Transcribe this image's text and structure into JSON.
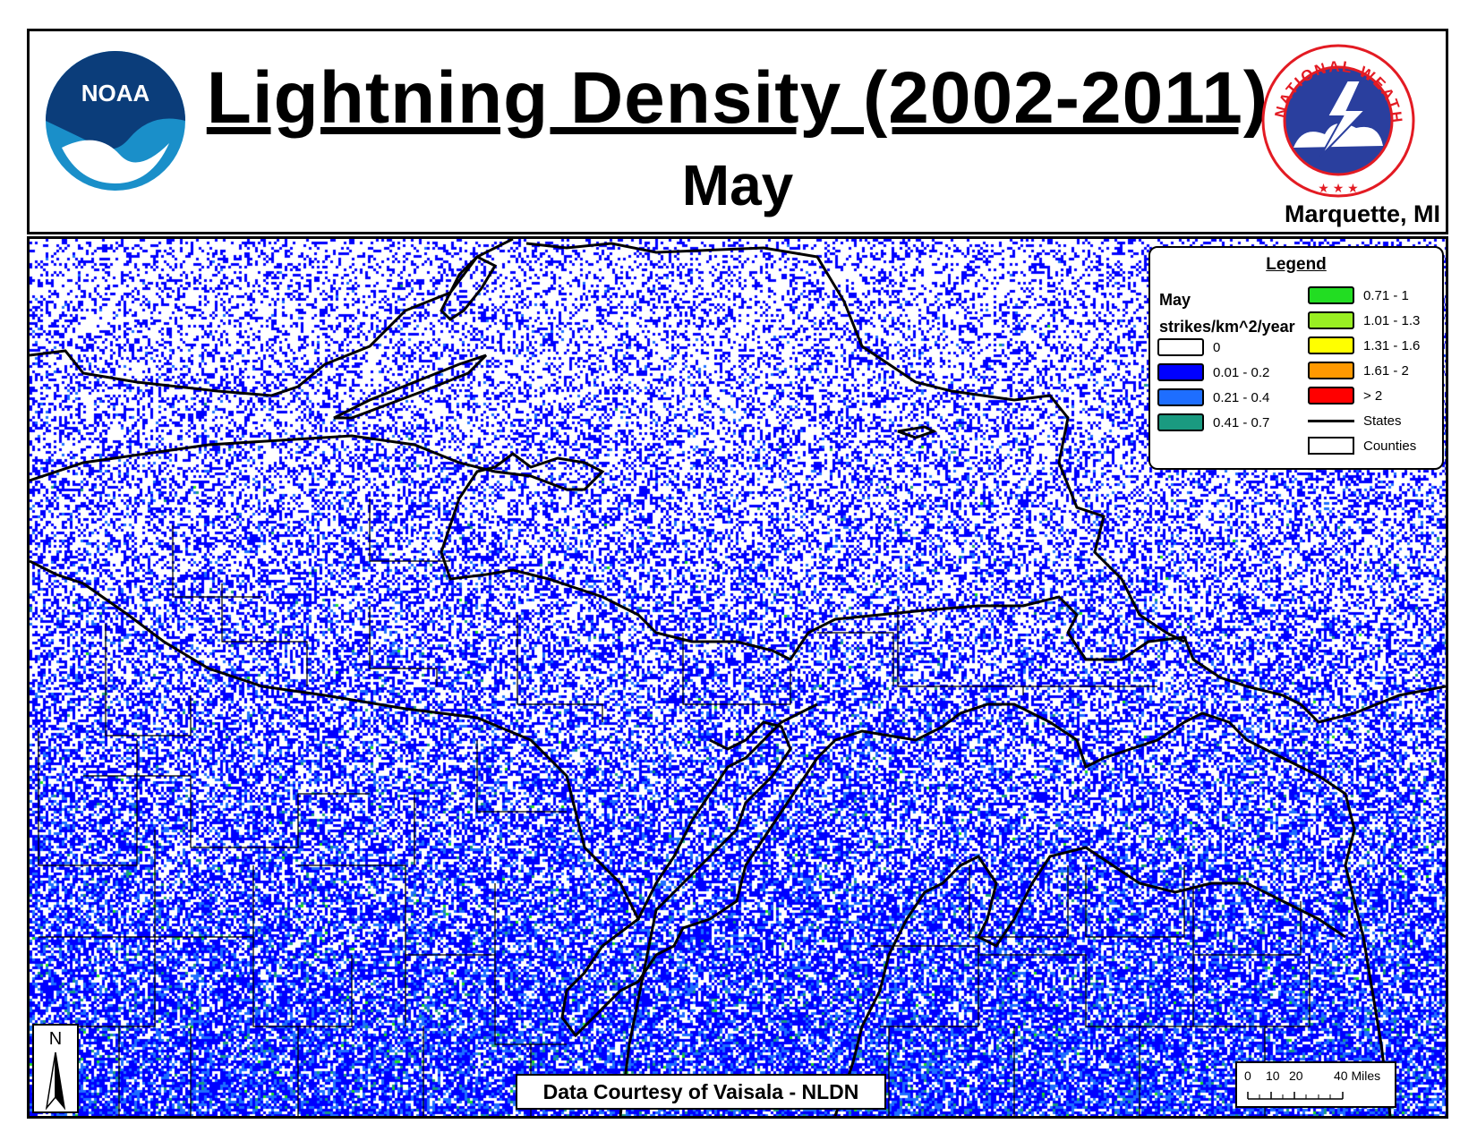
{
  "header": {
    "title": "Lightning Density (2002-2011)",
    "subtitle": "May",
    "office": "Marquette, MI",
    "noaa_logo_text": "NOAA",
    "nws_logo_text": "NATIONAL WEATHER SERVICE"
  },
  "legend": {
    "title": "Legend",
    "month": "May",
    "units": "strikes/km^2/year",
    "classes": [
      {
        "label": "0",
        "color": "#ffffff"
      },
      {
        "label": "0.01 - 0.2",
        "color": "#0000ff"
      },
      {
        "label": "0.21 - 0.4",
        "color": "#1e6eff"
      },
      {
        "label": "0.41 - 0.7",
        "color": "#1a9a80"
      },
      {
        "label": "0.71 - 1",
        "color": "#22dd22"
      },
      {
        "label": "1.01 - 1.3",
        "color": "#99ee22"
      },
      {
        "label": "1.31 - 1.6",
        "color": "#ffff00"
      },
      {
        "label": "1.61 - 2",
        "color": "#ff9900"
      },
      {
        "label": "> 2",
        "color": "#ff0000"
      }
    ],
    "states_label": "States",
    "counties_label": "Counties"
  },
  "credit": "Data Courtesy of Vaisala - NLDN",
  "north_arrow": "N",
  "scale": {
    "ticks": [
      "0",
      "10",
      "20",
      "40 Miles"
    ]
  },
  "colors": {
    "background": "#ffffff",
    "state_line": "#000000",
    "noaa_blue": "#1a5fa0",
    "nws_red": "#e31b23"
  }
}
